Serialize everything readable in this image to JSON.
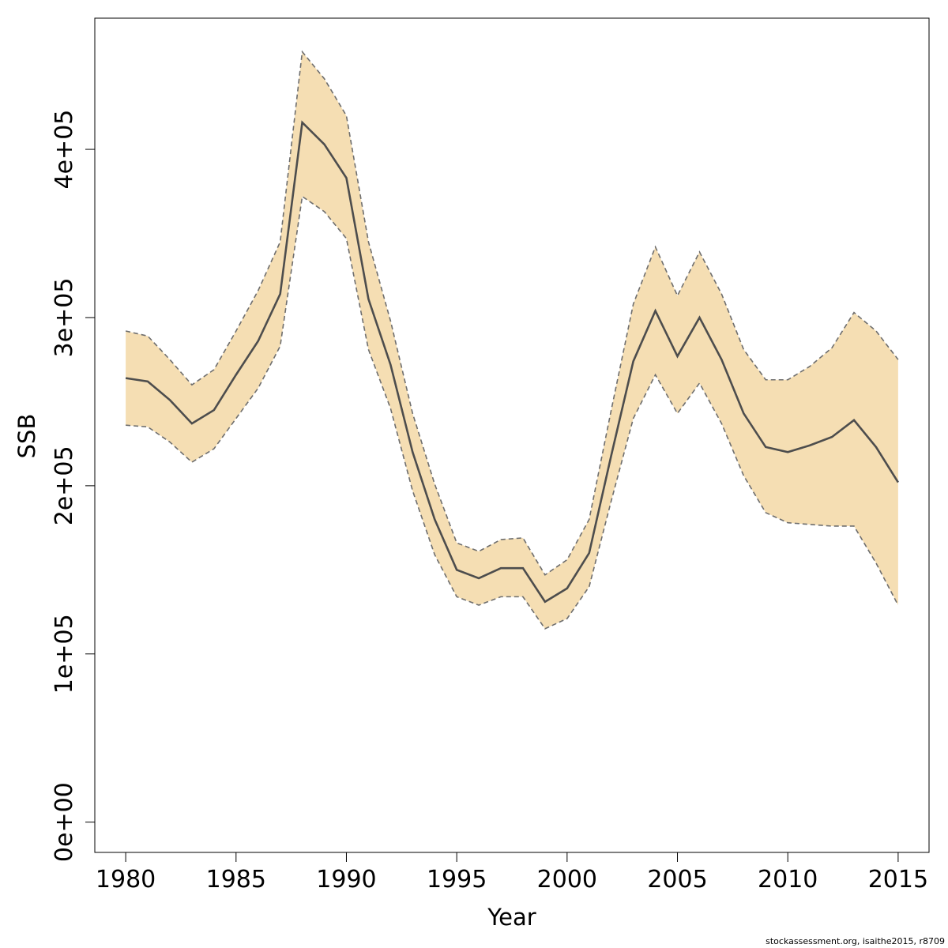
{
  "chart_data": {
    "type": "area",
    "title": "",
    "xlabel": "Year",
    "ylabel": "SSB",
    "xlim": [
      1978.6,
      2016.4
    ],
    "ylim": [
      -18000,
      478000
    ],
    "x_ticks": [
      1980,
      1985,
      1990,
      1995,
      2000,
      2005,
      2010,
      2015
    ],
    "x_tick_labels": [
      "1980",
      "1985",
      "1990",
      "1995",
      "2000",
      "2005",
      "2010",
      "2015"
    ],
    "y_ticks": [
      0,
      100000,
      200000,
      300000,
      400000
    ],
    "y_tick_labels": [
      "0e+00",
      "1e+05",
      "2e+05",
      "3e+05",
      "4e+05"
    ],
    "grid": false,
    "colors": {
      "band": "#F5DEB3",
      "line": "#4D4D4D",
      "bound": "#6E6E6E"
    },
    "x": [
      1980,
      1981,
      1982,
      1983,
      1984,
      1985,
      1986,
      1987,
      1988,
      1989,
      1990,
      1991,
      1992,
      1993,
      1994,
      1995,
      1996,
      1997,
      1998,
      1999,
      2000,
      2001,
      2002,
      2003,
      2004,
      2005,
      2006,
      2007,
      2008,
      2009,
      2010,
      2011,
      2012,
      2013,
      2014,
      2015
    ],
    "series": [
      {
        "role": "estimate",
        "values": [
          264000,
          262000,
          251000,
          237000,
          245000,
          266000,
          286000,
          314000,
          416000,
          403000,
          383000,
          311000,
          272000,
          220000,
          180000,
          150000,
          145000,
          151000,
          151000,
          131000,
          139000,
          160000,
          218000,
          274000,
          304000,
          277000,
          300000,
          275000,
          243000,
          223000,
          220000,
          224000,
          229000,
          239000,
          223000,
          202000
        ]
      },
      {
        "role": "upper",
        "values": [
          292000,
          289000,
          275000,
          260000,
          269000,
          292000,
          316000,
          345000,
          458000,
          442000,
          420000,
          345000,
          298000,
          243000,
          201000,
          166000,
          161000,
          168000,
          169000,
          147000,
          156000,
          180000,
          245000,
          308000,
          342000,
          313000,
          339000,
          314000,
          281000,
          263000,
          263000,
          271000,
          282000,
          303000,
          292000,
          275000
        ]
      },
      {
        "role": "lower",
        "values": [
          236000,
          235000,
          226000,
          214000,
          222000,
          240000,
          258000,
          283000,
          372000,
          363000,
          347000,
          281000,
          246000,
          197000,
          159000,
          134000,
          129000,
          134000,
          134000,
          115000,
          121000,
          140000,
          191000,
          240000,
          266000,
          243000,
          261000,
          237000,
          206000,
          184000,
          178000,
          177000,
          176000,
          176000,
          154000,
          129000
        ]
      }
    ]
  },
  "footer": {
    "credit": "stockassessment.org, isaithe2015, r8709"
  }
}
